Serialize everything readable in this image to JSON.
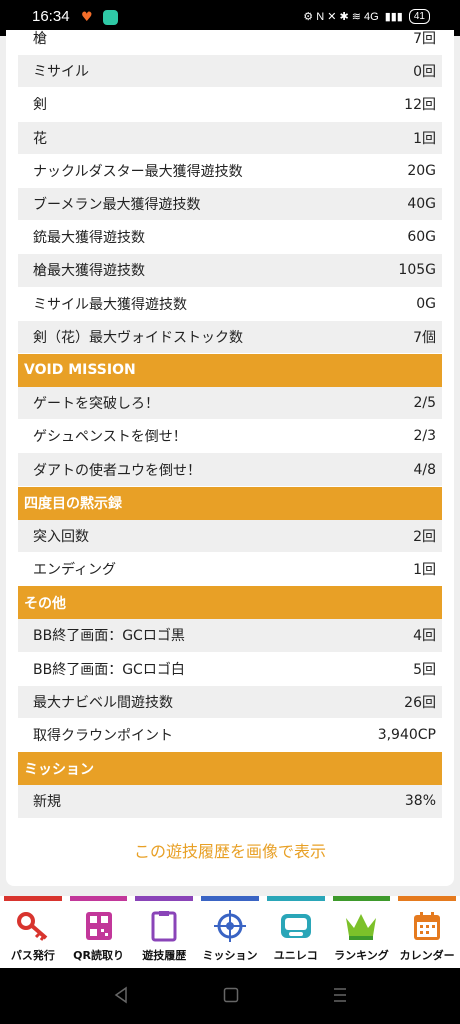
{
  "status_bar": {
    "time": "16:34",
    "indicators": "⚙ N ✕ ✱ ≋ 4G",
    "battery": "41"
  },
  "rows_a": [
    {
      "label": "槍",
      "value": "7回"
    },
    {
      "label": "ミサイル",
      "value": "0回"
    },
    {
      "label": "剣",
      "value": "12回"
    },
    {
      "label": "花",
      "value": "1回"
    },
    {
      "label": "ナックルダスター最大獲得遊技数",
      "value": "20G"
    },
    {
      "label": "ブーメラン最大獲得遊技数",
      "value": "40G"
    },
    {
      "label": "銃最大獲得遊技数",
      "value": "60G"
    },
    {
      "label": "槍最大獲得遊技数",
      "value": "105G"
    },
    {
      "label": "ミサイル最大獲得遊技数",
      "value": "0G"
    },
    {
      "label": "剣（花）最大ヴォイドストック数",
      "value": "7個"
    }
  ],
  "section_void": "VOID MISSION",
  "rows_void": [
    {
      "label": "ゲートを突破しろ！",
      "value": "2/5"
    },
    {
      "label": "ゲシュペンストを倒せ！",
      "value": "2/3"
    },
    {
      "label": "ダアトの使者ユウを倒せ！",
      "value": "4/8"
    }
  ],
  "section_record": "四度目の黙示録",
  "rows_record": [
    {
      "label": "突入回数",
      "value": "2回"
    },
    {
      "label": "エンディング",
      "value": "1回"
    }
  ],
  "section_other": "その他",
  "rows_other": [
    {
      "label": "BB終了画面：GCロゴ黒",
      "value": "4回"
    },
    {
      "label": "BB終了画面：GCロゴ白",
      "value": "5回"
    },
    {
      "label": "最大ナビベル間遊技数",
      "value": "26回"
    },
    {
      "label": "取得クラウンポイント",
      "value": "3,940CP"
    }
  ],
  "section_mission": "ミッション",
  "rows_mission": [
    {
      "label": "新規",
      "value": "38%"
    }
  ],
  "show_image_link": "この遊技履歴を画像で表示",
  "nav": [
    {
      "label": "パス発行",
      "icon": "key-icon",
      "color": "#d8342e"
    },
    {
      "label": "QR読取り",
      "icon": "qr-icon",
      "color": "#c2379a"
    },
    {
      "label": "遊技履歴",
      "icon": "clipboard-icon",
      "color": "#8a44b8"
    },
    {
      "label": "ミッション",
      "icon": "target-icon",
      "color": "#3a64c4"
    },
    {
      "label": "ユニレコ",
      "icon": "unireco-icon",
      "color": "#2aa6b8"
    },
    {
      "label": "ランキング",
      "icon": "crown-icon",
      "color": "#3e9a2c"
    },
    {
      "label": "カレンダー",
      "icon": "calendar-icon",
      "color": "#e57a1e"
    }
  ],
  "colors": {
    "accent": "#e8a026",
    "row_gray": "#efefef"
  }
}
